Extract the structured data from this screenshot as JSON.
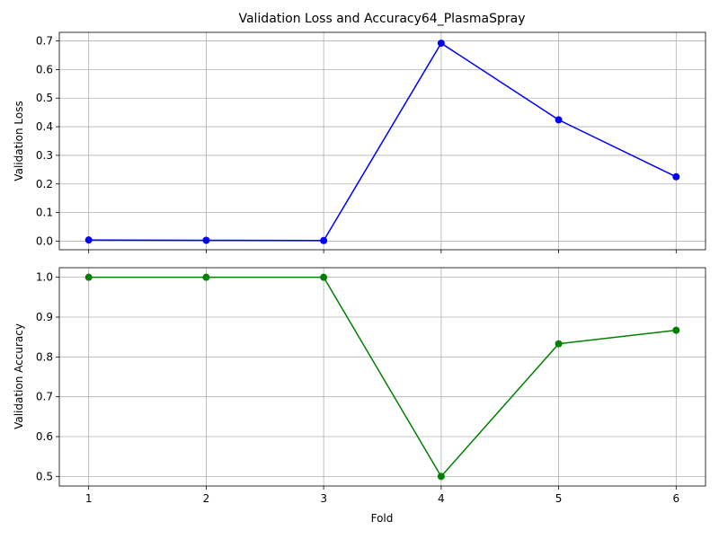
{
  "chart_data": {
    "type": "line",
    "title": "Validation Loss and Accuracy64_PlasmaSpray",
    "xlabel": "Fold",
    "x": [
      1,
      2,
      3,
      4,
      5,
      6
    ],
    "x_ticks": [
      "1",
      "2",
      "3",
      "4",
      "5",
      "6"
    ],
    "grid": true,
    "subplots": [
      {
        "ylabel": "Validation Loss",
        "ylim": [
          -0.03,
          0.73
        ],
        "y_ticks": [
          0.0,
          0.1,
          0.2,
          0.3,
          0.4,
          0.5,
          0.6,
          0.7
        ],
        "y_tick_labels": [
          "0.0",
          "0.1",
          "0.2",
          "0.3",
          "0.4",
          "0.5",
          "0.6",
          "0.7"
        ],
        "series": [
          {
            "color": "#0000ff",
            "marker": "circle",
            "values": [
              0.004,
              0.003,
              0.002,
              0.692,
              0.424,
              0.225
            ]
          }
        ]
      },
      {
        "ylabel": "Validation Accuracy",
        "ylim": [
          0.476,
          1.024
        ],
        "y_ticks": [
          0.5,
          0.6,
          0.7,
          0.8,
          0.9,
          1.0
        ],
        "y_tick_labels": [
          "0.5",
          "0.6",
          "0.7",
          "0.8",
          "0.9",
          "1.0"
        ],
        "series": [
          {
            "color": "#008000",
            "marker": "circle",
            "values": [
              1.0,
              1.0,
              1.0,
              0.5,
              0.833,
              0.867
            ]
          }
        ]
      }
    ]
  }
}
